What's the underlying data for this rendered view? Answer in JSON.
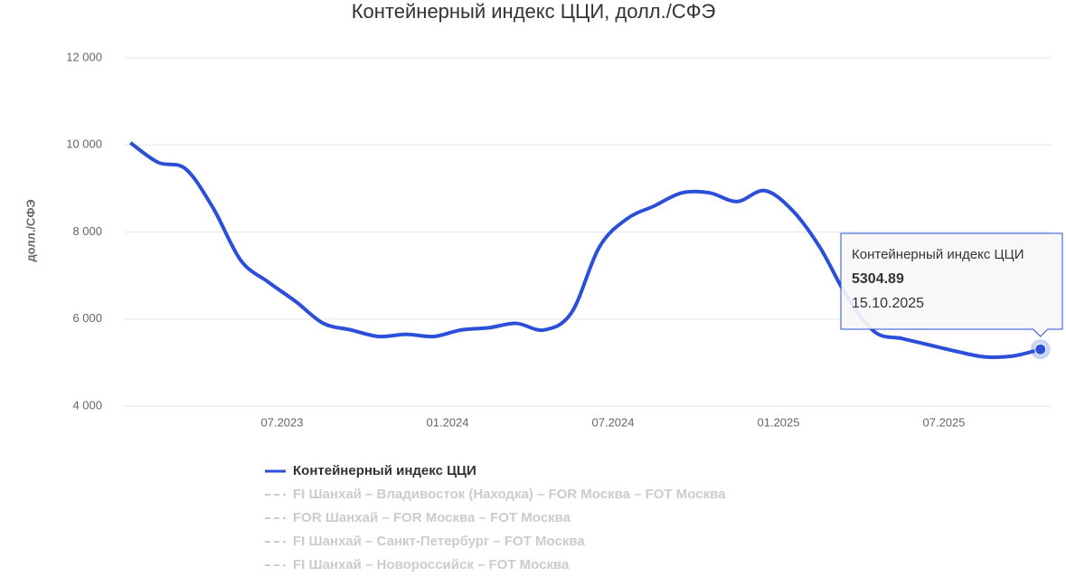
{
  "chart_data": {
    "type": "line",
    "title": "Контейнерный индекс ЦЦИ, долл./СФЭ",
    "y_label": "долл./СФЭ",
    "x": [
      "01.2023",
      "02.2023",
      "03.2023",
      "04.2023",
      "05.2023",
      "06.2023",
      "07.2023",
      "08.2023",
      "09.2023",
      "10.2023",
      "11.2023",
      "12.2023",
      "01.2024",
      "02.2024",
      "03.2024",
      "04.2024",
      "05.2024",
      "06.2024",
      "07.2024",
      "08.2024",
      "09.2024",
      "10.2024",
      "11.2024",
      "12.2024",
      "01.2025",
      "02.2025",
      "03.2025",
      "04.2025",
      "05.2025",
      "06.2025",
      "07.2025",
      "08.2025",
      "09.2025",
      "10.2025"
    ],
    "series": [
      {
        "name": "Контейнерный индекс ЦЦИ",
        "color": "#2b4fd8",
        "values": [
          10050,
          9600,
          9450,
          8550,
          7350,
          6850,
          6400,
          5900,
          5750,
          5600,
          5650,
          5600,
          5750,
          5800,
          5900,
          5750,
          6150,
          7650,
          8300,
          8600,
          8900,
          8900,
          8700,
          8950,
          8500,
          7650,
          6500,
          5700,
          5550,
          5400,
          5250,
          5130,
          5150,
          5304.89
        ]
      }
    ],
    "inactive_legend_entries": [
      "FI Шанхай – Владивосток (Находка) – FOR Москва – FOT Москва",
      "FOR Шанхай – FOR Москва – FOT Москва",
      "FI Шанхай – Санкт-Петербург – FOT Москва",
      "FI Шанхай – Новороссийск – FOT Москва"
    ],
    "xticks": [
      "07.2023",
      "01.2024",
      "07.2024",
      "01.2025",
      "07.2025"
    ],
    "ylim": [
      4000,
      12000
    ],
    "yticks": [
      {
        "value": 4000,
        "label": "4 000"
      },
      {
        "value": 6000,
        "label": "6 000"
      },
      {
        "value": 8000,
        "label": "8 000"
      },
      {
        "value": 10000,
        "label": "10 000"
      },
      {
        "value": 12000,
        "label": "12 000"
      }
    ],
    "grid": true,
    "tooltip": {
      "series_name": "Контейнерный индекс ЦЦИ",
      "value": 5304.89,
      "date": "15.10.2025"
    }
  }
}
